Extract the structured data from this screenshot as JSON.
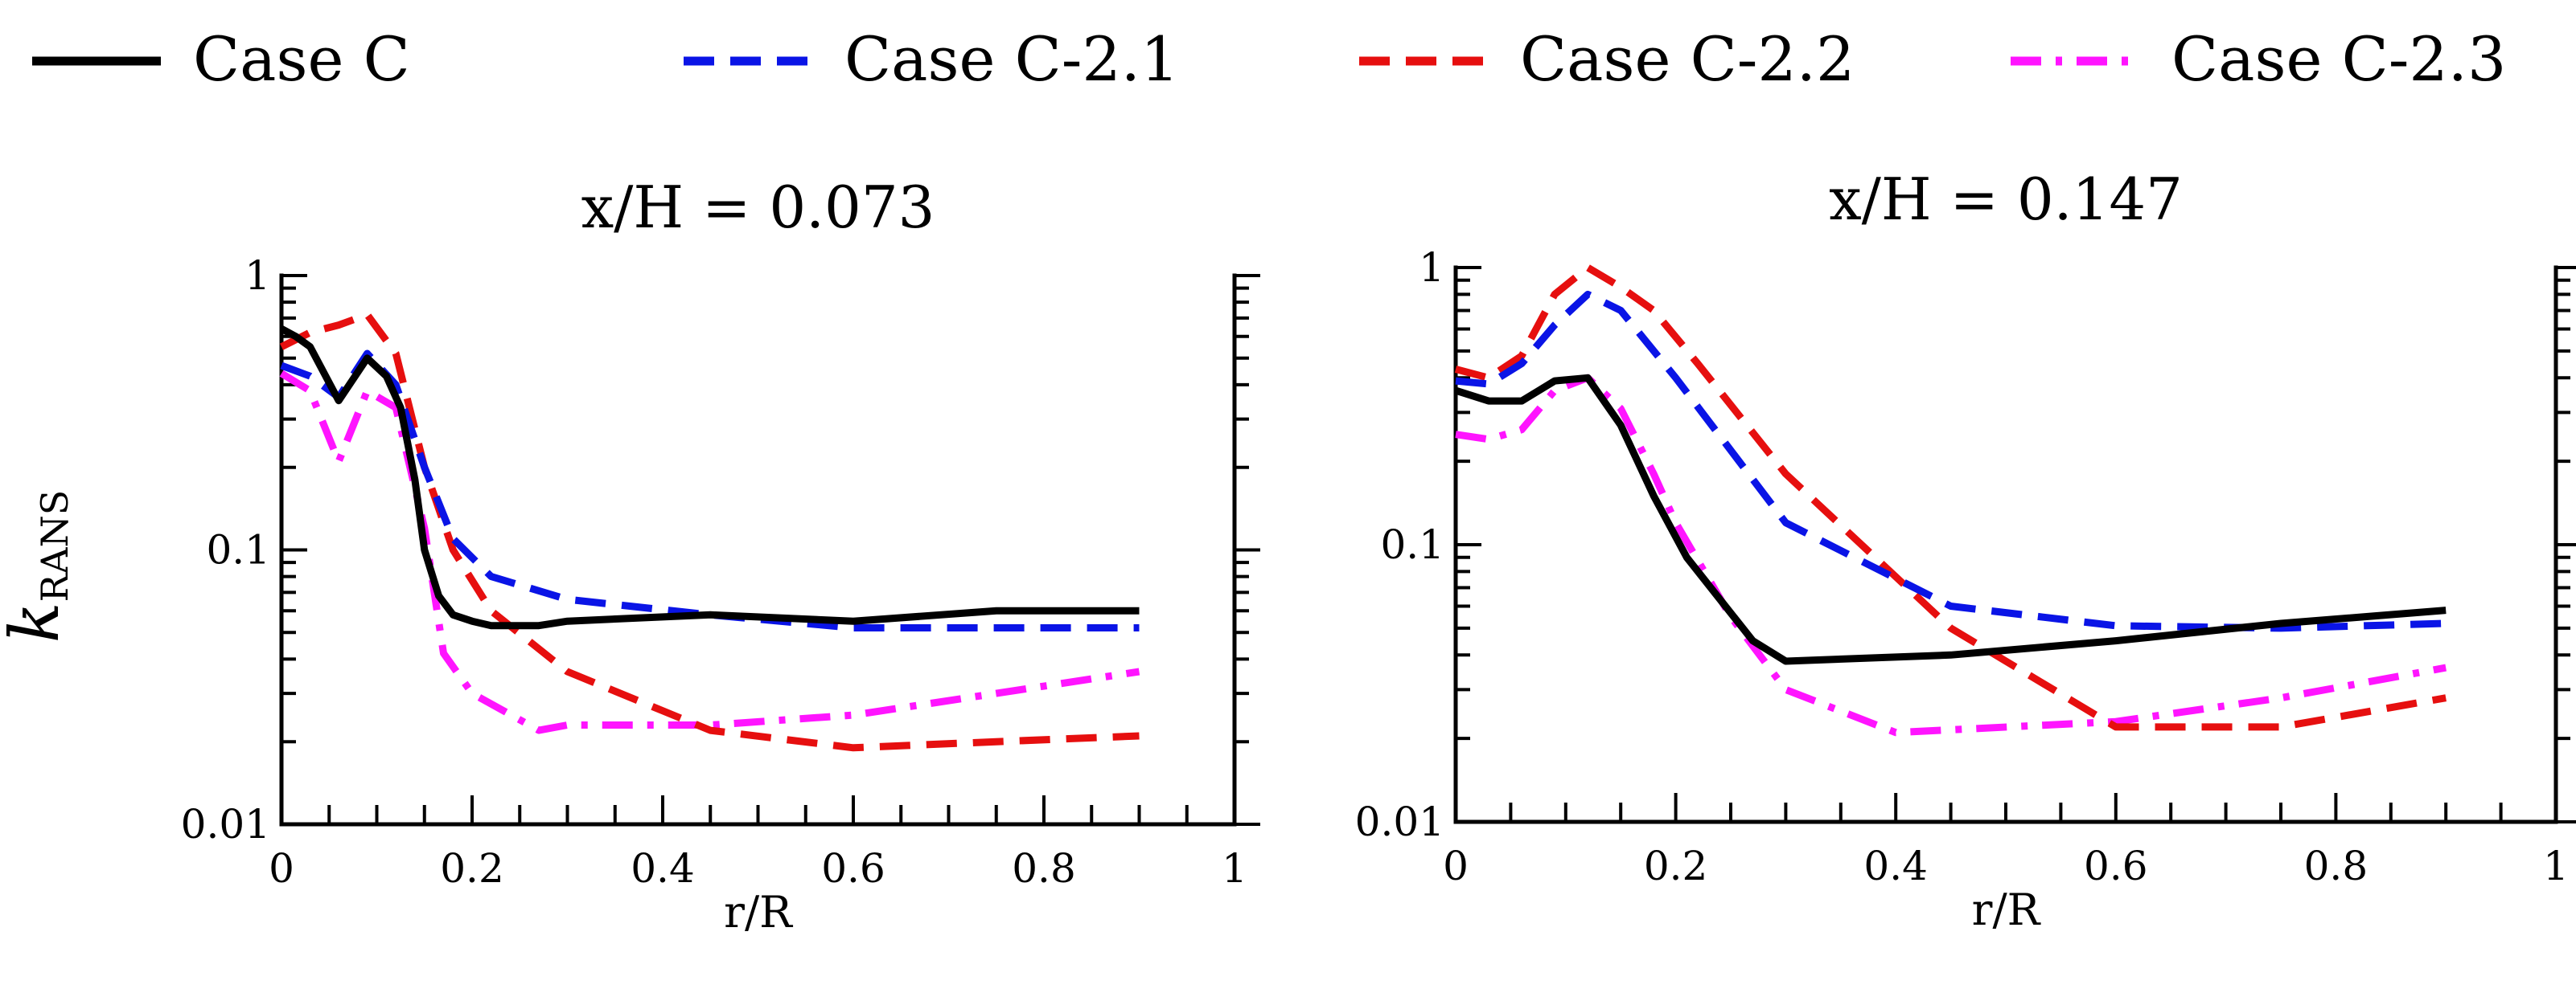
{
  "legend": [
    {
      "label": "Case C",
      "color": "#000000",
      "dash": "solid"
    },
    {
      "label": "Case C-2.1",
      "color": "#0a14e6",
      "dash": "dash"
    },
    {
      "label": "Case C-2.2",
      "color": "#e60f0f",
      "dash": "dash"
    },
    {
      "label": "Case C-2.3",
      "color": "#ff14ff",
      "dash": "dashdot"
    }
  ],
  "ylabel": {
    "main": "k",
    "sub": "RANS"
  },
  "chart_data": [
    {
      "type": "line",
      "title": "x/H = 0.073",
      "xlabel": "r/R",
      "ylabel": "kRANS",
      "xlim": [
        0,
        1
      ],
      "ylim": [
        0.01,
        1
      ],
      "yscale": "log",
      "xticks": [
        "0",
        "0.2",
        "0.4",
        "0.6",
        "0.8",
        "1"
      ],
      "yticks": [
        "0.01",
        "0.1",
        "1"
      ],
      "series": [
        {
          "name": "Case C",
          "x": [
            0,
            0.015,
            0.03,
            0.06,
            0.09,
            0.11,
            0.125,
            0.14,
            0.15,
            0.165,
            0.18,
            0.2,
            0.22,
            0.27,
            0.3,
            0.35,
            0.45,
            0.6,
            0.75,
            0.9
          ],
          "y": [
            0.64,
            0.6,
            0.55,
            0.35,
            0.5,
            0.43,
            0.33,
            0.18,
            0.1,
            0.068,
            0.058,
            0.055,
            0.053,
            0.053,
            0.055,
            0.056,
            0.058,
            0.055,
            0.06,
            0.06
          ]
        },
        {
          "name": "Case C-2.1",
          "x": [
            0,
            0.03,
            0.06,
            0.09,
            0.12,
            0.15,
            0.18,
            0.22,
            0.3,
            0.45,
            0.6,
            0.75,
            0.9
          ],
          "y": [
            0.47,
            0.43,
            0.36,
            0.52,
            0.4,
            0.2,
            0.11,
            0.08,
            0.066,
            0.058,
            0.052,
            0.052,
            0.052
          ]
        },
        {
          "name": "Case C-2.2",
          "x": [
            0,
            0.03,
            0.06,
            0.09,
            0.12,
            0.15,
            0.18,
            0.22,
            0.3,
            0.45,
            0.6,
            0.75,
            0.9
          ],
          "y": [
            0.55,
            0.62,
            0.66,
            0.72,
            0.52,
            0.2,
            0.1,
            0.06,
            0.036,
            0.022,
            0.019,
            0.02,
            0.021
          ]
        },
        {
          "name": "Case C-2.3",
          "x": [
            0,
            0.03,
            0.06,
            0.09,
            0.12,
            0.15,
            0.17,
            0.2,
            0.27,
            0.3,
            0.45,
            0.6,
            0.75,
            0.9
          ],
          "y": [
            0.44,
            0.38,
            0.21,
            0.38,
            0.33,
            0.12,
            0.042,
            0.03,
            0.022,
            0.023,
            0.023,
            0.025,
            0.03,
            0.036
          ]
        }
      ]
    },
    {
      "type": "line",
      "title": "x/H = 0.147",
      "xlabel": "r/R",
      "ylabel": "kRANS",
      "xlim": [
        0,
        1
      ],
      "ylim": [
        0.01,
        1
      ],
      "yscale": "log",
      "xticks": [
        "0",
        "0.2",
        "0.4",
        "0.6",
        "0.8",
        "1"
      ],
      "yticks": [
        "0.01",
        "0.1",
        "1"
      ],
      "series": [
        {
          "name": "Case C",
          "x": [
            0,
            0.03,
            0.06,
            0.09,
            0.12,
            0.15,
            0.18,
            0.21,
            0.27,
            0.3,
            0.45,
            0.6,
            0.75,
            0.9
          ],
          "y": [
            0.36,
            0.33,
            0.33,
            0.39,
            0.4,
            0.27,
            0.15,
            0.09,
            0.045,
            0.038,
            0.04,
            0.045,
            0.052,
            0.058
          ]
        },
        {
          "name": "Case C-2.1",
          "x": [
            0,
            0.03,
            0.06,
            0.09,
            0.12,
            0.15,
            0.2,
            0.3,
            0.45,
            0.6,
            0.75,
            0.9
          ],
          "y": [
            0.39,
            0.38,
            0.45,
            0.62,
            0.8,
            0.7,
            0.4,
            0.12,
            0.06,
            0.051,
            0.05,
            0.052
          ]
        },
        {
          "name": "Case C-2.2",
          "x": [
            0,
            0.03,
            0.06,
            0.09,
            0.12,
            0.15,
            0.18,
            0.22,
            0.3,
            0.45,
            0.6,
            0.75,
            0.9
          ],
          "y": [
            0.43,
            0.4,
            0.48,
            0.8,
            1.0,
            0.85,
            0.7,
            0.45,
            0.18,
            0.05,
            0.022,
            0.022,
            0.028
          ]
        },
        {
          "name": "Case C-2.3",
          "x": [
            0,
            0.03,
            0.06,
            0.09,
            0.12,
            0.15,
            0.18,
            0.2,
            0.25,
            0.3,
            0.4,
            0.6,
            0.75,
            0.9
          ],
          "y": [
            0.25,
            0.24,
            0.26,
            0.36,
            0.4,
            0.31,
            0.18,
            0.12,
            0.055,
            0.03,
            0.021,
            0.023,
            0.028,
            0.036
          ]
        }
      ]
    }
  ]
}
